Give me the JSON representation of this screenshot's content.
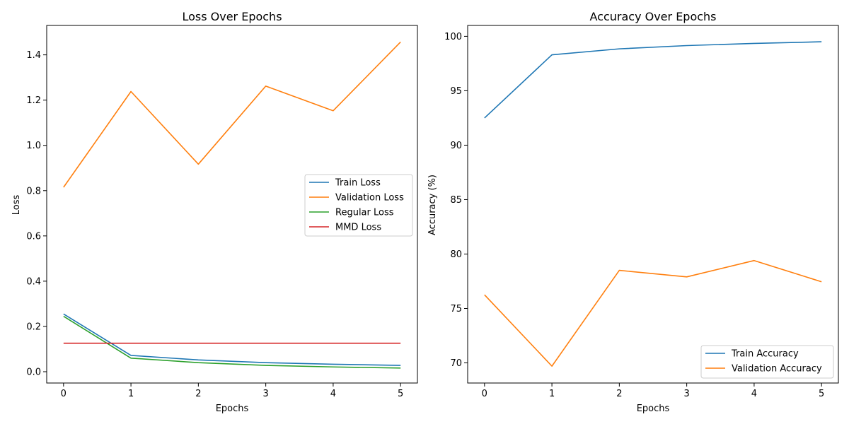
{
  "chart_data": [
    {
      "type": "line",
      "title": "Loss Over Epochs",
      "xlabel": "Epochs",
      "ylabel": "Loss",
      "x": [
        0,
        1,
        2,
        3,
        4,
        5
      ],
      "xlim": [
        -0.25,
        5.25
      ],
      "ylim": [
        -0.05,
        1.53
      ],
      "xticks": [
        0,
        1,
        2,
        3,
        4,
        5
      ],
      "yticks": [
        0.0,
        0.2,
        0.4,
        0.6,
        0.8,
        1.0,
        1.2,
        1.4
      ],
      "ytick_labels": [
        "0.0",
        "0.2",
        "0.4",
        "0.6",
        "0.8",
        "1.0",
        "1.2",
        "1.4"
      ],
      "grid": false,
      "legend_position": "center-right",
      "series": [
        {
          "name": "Train Loss",
          "color": "#1f77b4",
          "values": [
            0.255,
            0.072,
            0.052,
            0.04,
            0.033,
            0.028
          ]
        },
        {
          "name": "Validation Loss",
          "color": "#ff7f0e",
          "values": [
            0.815,
            1.238,
            0.917,
            1.262,
            1.153,
            1.457
          ]
        },
        {
          "name": "Regular Loss",
          "color": "#2ca02c",
          "values": [
            0.245,
            0.06,
            0.04,
            0.028,
            0.021,
            0.016
          ]
        },
        {
          "name": "MMD Loss",
          "color": "#d62728",
          "values": [
            0.126,
            0.126,
            0.126,
            0.126,
            0.126,
            0.126
          ]
        }
      ]
    },
    {
      "type": "line",
      "title": "Accuracy Over Epochs",
      "xlabel": "Epochs",
      "ylabel": "Accuracy (%)",
      "x": [
        0,
        1,
        2,
        3,
        4,
        5
      ],
      "xlim": [
        -0.25,
        5.25
      ],
      "ylim": [
        68.15,
        101.0
      ],
      "xticks": [
        0,
        1,
        2,
        3,
        4,
        5
      ],
      "yticks": [
        70,
        75,
        80,
        85,
        90,
        95,
        100
      ],
      "ytick_labels": [
        "70",
        "75",
        "80",
        "85",
        "90",
        "95",
        "100"
      ],
      "grid": false,
      "legend_position": "lower-right",
      "series": [
        {
          "name": "Train Accuracy",
          "color": "#1f77b4",
          "values": [
            92.5,
            98.3,
            98.85,
            99.15,
            99.35,
            99.5
          ]
        },
        {
          "name": "Validation Accuracy",
          "color": "#ff7f0e",
          "values": [
            76.25,
            69.7,
            78.5,
            77.9,
            79.4,
            77.45
          ]
        }
      ]
    }
  ]
}
